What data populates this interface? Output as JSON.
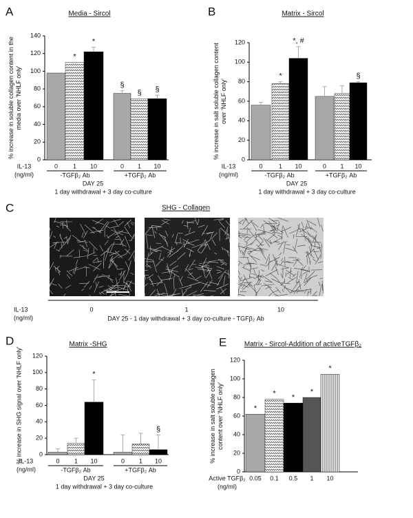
{
  "chart_data": [
    {
      "type": "bar",
      "panel_label": "A",
      "title": "Media - Sircol",
      "ylabel": [
        "% increase in soluble collagen content in the",
        "media over 'NHLF only'"
      ],
      "x_label": [
        "IL-13",
        "(ng/ml)"
      ],
      "categories": [
        "0",
        "1",
        "10",
        "0",
        "1",
        "10"
      ],
      "groups": [
        "-TGFβ₂ Ab",
        "+TGFβ₂ Ab"
      ],
      "footer": [
        "DAY 25",
        "1 day withdrawal + 3 day co-culture"
      ],
      "values": [
        98,
        110,
        122,
        75,
        69,
        69
      ],
      "errors": [
        0,
        0,
        5,
        3,
        0,
        4
      ],
      "annotations": [
        null,
        "*",
        "*",
        "§",
        "§",
        "§"
      ],
      "colors": [
        "#a8a8a8",
        "url(#zig)",
        "#000000",
        "#a8a8a8",
        "url(#zig)",
        "#000000"
      ],
      "ylim": [
        0,
        140
      ],
      "yticks": [
        0,
        20,
        40,
        60,
        80,
        100,
        120,
        140
      ]
    },
    {
      "type": "bar",
      "panel_label": "B",
      "title": "Matrix - Sircol",
      "ylabel": [
        "% increase in salt soluble collagen content",
        "over 'NHLF only'"
      ],
      "x_label": [
        "IL-13",
        "(ng/ml)"
      ],
      "categories": [
        "0",
        "1",
        "10",
        "0",
        "1",
        "10"
      ],
      "groups": [
        "-TGFβ₂ Ab",
        "+TGFβ₂ Ab"
      ],
      "footer": [
        "DAY 25",
        "1 day withdrawal + 3 day co-culture"
      ],
      "values": [
        56,
        78,
        104,
        65,
        68,
        79
      ],
      "errors": [
        3,
        2,
        12,
        10,
        8,
        1
      ],
      "annotations": [
        null,
        "*",
        "*, #",
        null,
        null,
        "§"
      ],
      "colors": [
        "#a8a8a8",
        "url(#zig)",
        "#000000",
        "#a8a8a8",
        "url(#zig)",
        "#000000"
      ],
      "ylim": [
        0,
        120
      ],
      "yticks": [
        0,
        20,
        40,
        60,
        80,
        100,
        120
      ]
    },
    {
      "type": "bar",
      "panel_label": "D",
      "title": "Matrix -SHG",
      "ylabel": [
        "% increase in SHG signal over 'NHLF only'"
      ],
      "x_label": [
        "IL-13",
        "(ng/ml)"
      ],
      "categories": [
        "0",
        "1",
        "10",
        "0",
        "1",
        "10"
      ],
      "groups": [
        "-TGFβ₂ Ab",
        "+TGFβ₂ Ab"
      ],
      "footer": [
        "DAY 25",
        "1 day withdrawal + 3 day co-culture"
      ],
      "values": [
        3,
        14,
        64,
        3,
        13,
        6
      ],
      "errors": [
        4,
        6,
        27,
        21,
        13,
        18
      ],
      "annotations": [
        null,
        null,
        "*",
        null,
        null,
        "§"
      ],
      "colors": [
        "#a8a8a8",
        "url(#zig)",
        "#000000",
        "#a8a8a8",
        "url(#zig)",
        "#000000"
      ],
      "ylim": [
        0,
        120
      ],
      "yticks": [
        0,
        20,
        40,
        60,
        80,
        100,
        120
      ]
    },
    {
      "type": "bar",
      "panel_label": "E",
      "title": "Matrix - Sircol-Addition of activeTGFβ₂",
      "ylabel": [
        "% increase in salt soluble collagen",
        "content over 'NHLF only'"
      ],
      "x_label": [
        "Active TGFβ₂",
        "(ng/ml)"
      ],
      "categories": [
        "0.05",
        "0.1",
        "0.5",
        "1",
        "10"
      ],
      "values": [
        62,
        78,
        74,
        80,
        105
      ],
      "errors": [
        0,
        0,
        0,
        0,
        0
      ],
      "annotations": [
        "*",
        "*",
        "*",
        "*",
        "*"
      ],
      "colors": [
        "#a8a8a8",
        "url(#zig)",
        "#000000",
        "#555555",
        "url(#vl)"
      ],
      "ylim": [
        0,
        120
      ],
      "yticks": [
        0,
        20,
        40,
        60,
        80,
        100,
        120
      ]
    }
  ],
  "image_panel": {
    "panel_label": "C",
    "title": "SHG - Collagen",
    "x_label": [
      "IL-13",
      "(ng/ml)"
    ],
    "categories": [
      "0",
      "1",
      "10"
    ],
    "footer": "DAY 25 - 1 day withdrawal + 3 day co-culture - TGFβ₂ Ab"
  }
}
